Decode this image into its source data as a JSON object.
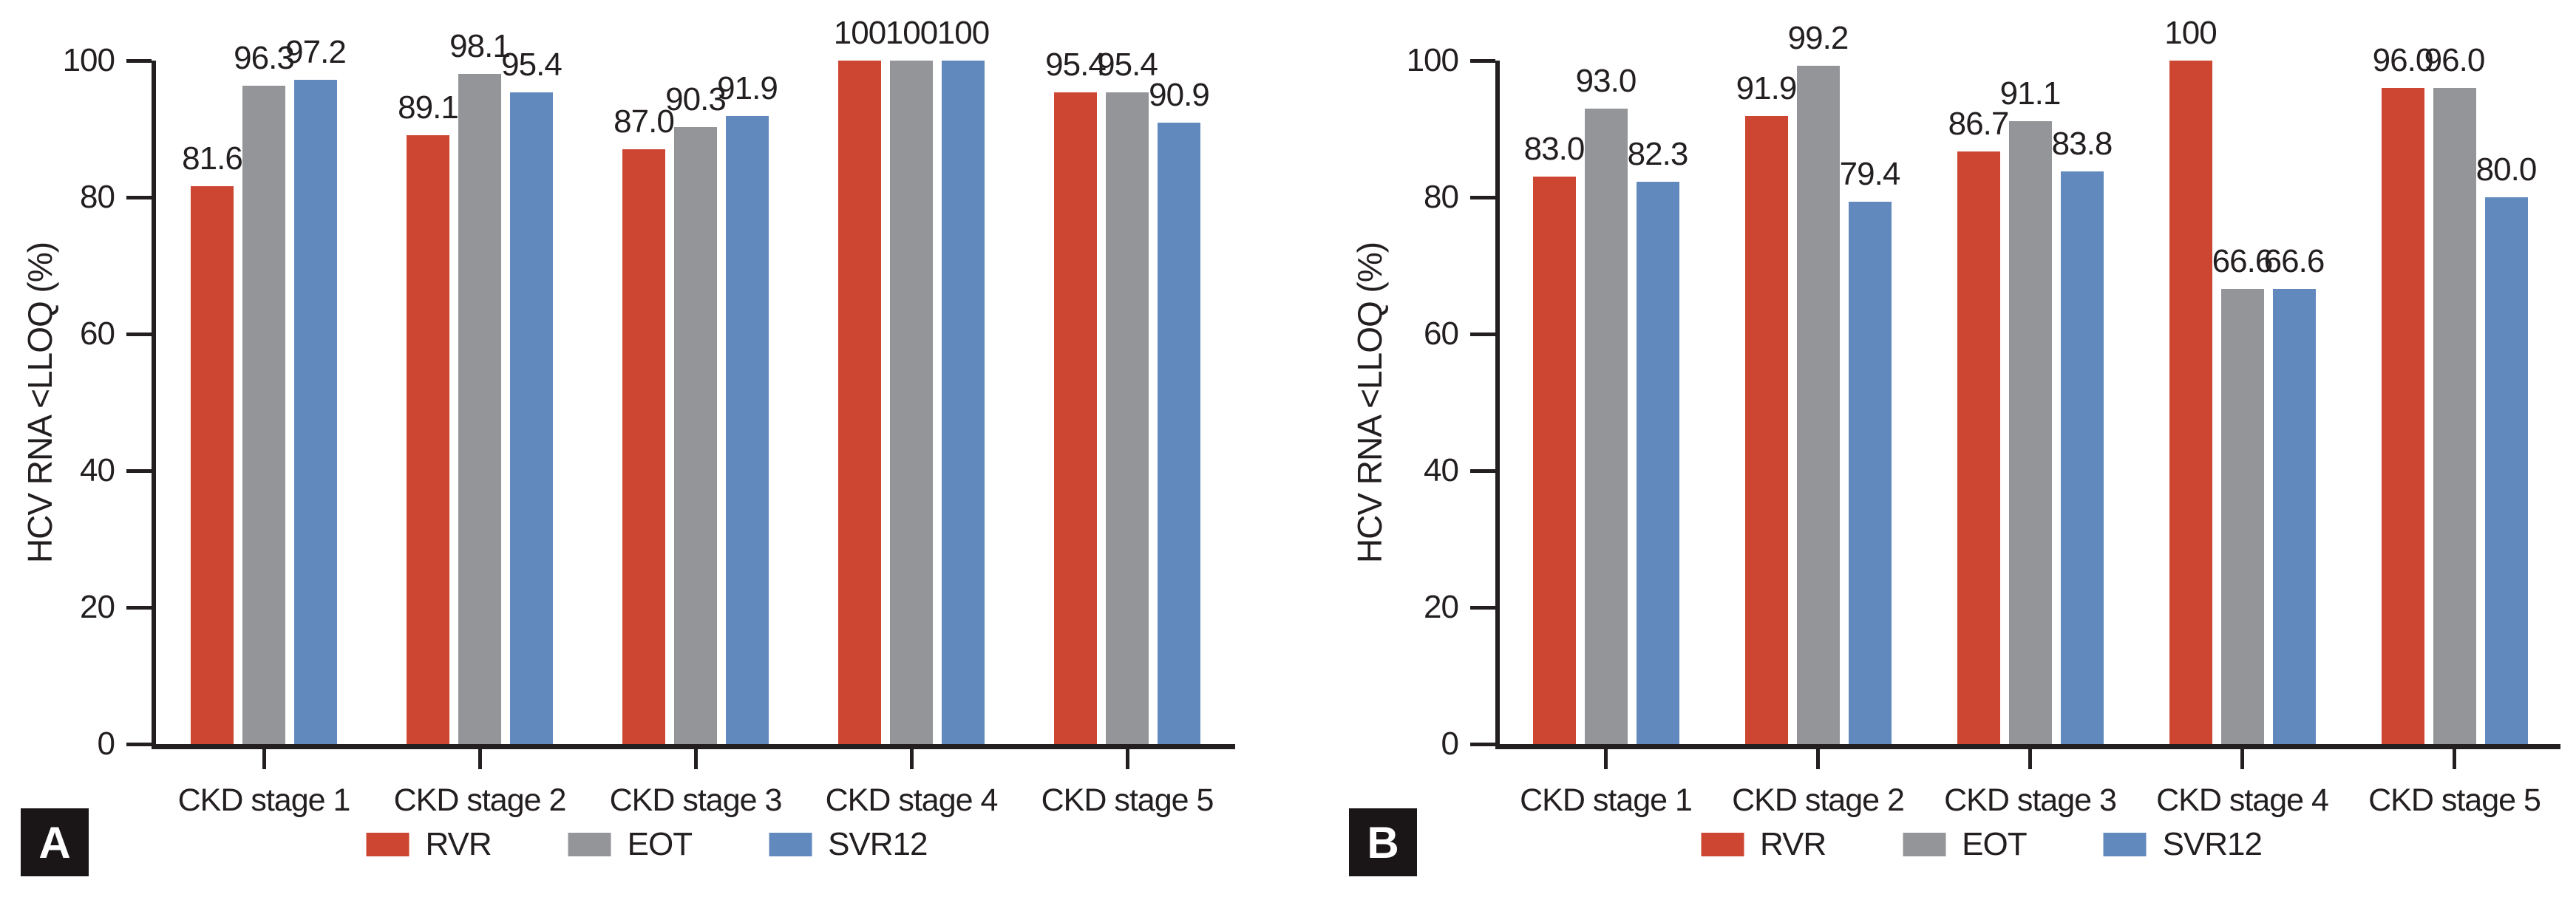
{
  "figure": {
    "background": "#ffffff",
    "axis_color": "#231f20",
    "series_colors": {
      "RVR": "#cd4632",
      "EOT": "#939598",
      "SVR12": "#6289be"
    }
  },
  "chart_data": [
    {
      "type": "bar",
      "panel_label": "A",
      "title": "",
      "xlabel": "",
      "ylabel": "HCV RNA <LLOQ (%)",
      "ylim": [
        0,
        100
      ],
      "yticks": [
        "0",
        "20",
        "40",
        "60",
        "80",
        "100"
      ],
      "grid": false,
      "legend_position": "bottom",
      "categories": [
        "CKD stage 1",
        "CKD stage 2",
        "CKD stage 3",
        "CKD stage 4",
        "CKD stage 5"
      ],
      "series": [
        {
          "name": "RVR",
          "color": "#cd4632",
          "values": [
            81.6,
            89.1,
            87.0,
            100,
            95.4
          ],
          "labels": [
            "81.6",
            "89.1",
            "87.0",
            "100",
            "95.4"
          ]
        },
        {
          "name": "EOT",
          "color": "#939598",
          "values": [
            96.3,
            98.1,
            90.3,
            100,
            95.4
          ],
          "labels": [
            "96.3",
            "98.1",
            "90.3",
            "100",
            "95.4"
          ]
        },
        {
          "name": "SVR12",
          "color": "#6289be",
          "values": [
            97.2,
            95.4,
            91.9,
            100,
            90.9
          ],
          "labels": [
            "97.2",
            "95.4",
            "91.9",
            "100",
            "90.9"
          ]
        }
      ]
    },
    {
      "type": "bar",
      "panel_label": "B",
      "title": "",
      "xlabel": "",
      "ylabel": "HCV RNA <LLOQ (%)",
      "ylim": [
        0,
        100
      ],
      "yticks": [
        "0",
        "20",
        "40",
        "60",
        "80",
        "100"
      ],
      "grid": false,
      "legend_position": "bottom",
      "categories": [
        "CKD stage 1",
        "CKD stage 2",
        "CKD stage 3",
        "CKD stage 4",
        "CKD stage 5"
      ],
      "series": [
        {
          "name": "RVR",
          "color": "#cd4632",
          "values": [
            83.0,
            91.9,
            86.7,
            100,
            96.0
          ],
          "labels": [
            "83.0",
            "91.9",
            "86.7",
            "100",
            "96.0"
          ]
        },
        {
          "name": "EOT",
          "color": "#939598",
          "values": [
            93.0,
            99.2,
            91.1,
            66.6,
            96.0
          ],
          "labels": [
            "93.0",
            "99.2",
            "91.1",
            "66.6",
            "96.0"
          ]
        },
        {
          "name": "SVR12",
          "color": "#6289be",
          "values": [
            82.3,
            79.4,
            83.8,
            66.6,
            80.0
          ],
          "labels": [
            "82.3",
            "79.4",
            "83.8",
            "66.6",
            "80.0"
          ]
        }
      ]
    }
  ]
}
